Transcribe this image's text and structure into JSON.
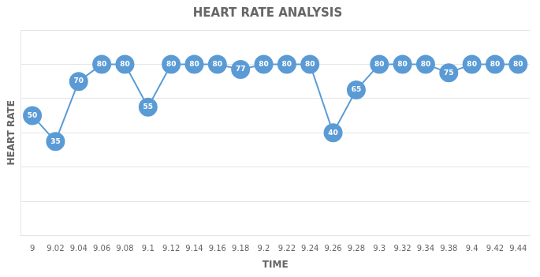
{
  "chart_data": {
    "type": "line",
    "title": "HEART RATE ANALYSIS",
    "x_label": "TIME",
    "y_label": "HEART RATE",
    "categories": [
      "9",
      "9.02",
      "9.04",
      "9.06",
      "9.08",
      "9.1",
      "9.12",
      "9.14",
      "9.16",
      "9.18",
      "9.2",
      "9.22",
      "9.24",
      "9.26",
      "9.28",
      "9.3",
      "9.32",
      "9.34",
      "9.38",
      "9.4",
      "9.42",
      "9.44"
    ],
    "values": [
      50,
      35,
      70,
      80,
      80,
      55,
      80,
      80,
      80,
      77,
      80,
      80,
      80,
      40,
      65,
      80,
      80,
      80,
      75,
      80,
      80,
      80
    ],
    "color": "#5B9BD5",
    "marker": "circle",
    "ylim": [
      -20,
      100
    ],
    "yticks": [
      0,
      20,
      40,
      60,
      80,
      100
    ],
    "grid": true,
    "data_labels": true,
    "tick_labels": "x"
  }
}
